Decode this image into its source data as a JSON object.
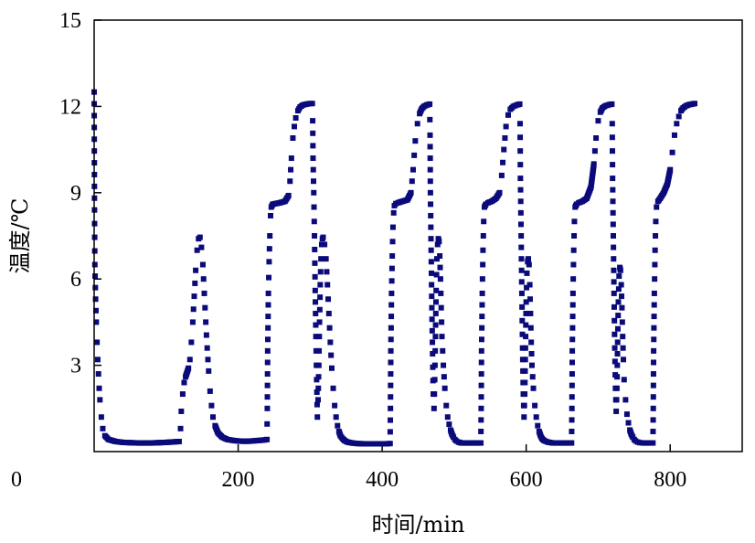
{
  "chart_data": {
    "type": "scatter",
    "title": "",
    "xlabel": "时间/min",
    "ylabel": "温度/℃",
    "xlim": [
      0,
      900
    ],
    "ylim": [
      0,
      15
    ],
    "xticks": [
      0,
      200,
      400,
      600,
      800
    ],
    "yticks": [
      3,
      6,
      9,
      12,
      15
    ],
    "x_tick_labels": [
      "0",
      "200",
      "400",
      "600",
      "800"
    ],
    "y_tick_labels": [
      "3",
      "6",
      "9",
      "12",
      "15"
    ],
    "grid": false,
    "legend": "none",
    "marker": "square",
    "color": "#0a0a7a",
    "series": [
      {
        "x": [
          0,
          0.5,
          1,
          2,
          3,
          4,
          5,
          6,
          7,
          8,
          10,
          12,
          15,
          20,
          30,
          40,
          60,
          80,
          100,
          118,
          120,
          121,
          123,
          125,
          127,
          129,
          131,
          133,
          135,
          137,
          139,
          141,
          143,
          145,
          147,
          149,
          151,
          153,
          155,
          157,
          159,
          161,
          163,
          165,
          168,
          172,
          178,
          185,
          195,
          205,
          215,
          225,
          235,
          240,
          240.5,
          241,
          242,
          243,
          244,
          245,
          246,
          248,
          252,
          258,
          265,
          270,
          272,
          274,
          276,
          278,
          280,
          283,
          286,
          290,
          295,
          300,
          303,
          303.5,
          304,
          305,
          306,
          307,
          308,
          309,
          310,
          311,
          312,
          313,
          314,
          315,
          316,
          317,
          318,
          320,
          322,
          324,
          326,
          328,
          330,
          332,
          334,
          336,
          338,
          340,
          342,
          345,
          348,
          352,
          358,
          365,
          375,
          385,
          395,
          405,
          411,
          411.5,
          412,
          413,
          414,
          415,
          416,
          417,
          419,
          422,
          428,
          435,
          440,
          443,
          446,
          449,
          452,
          455,
          458,
          462,
          466,
          466.5,
          467,
          468,
          469,
          470,
          471,
          472,
          473,
          474,
          475,
          476,
          477,
          478,
          479,
          480,
          481,
          482,
          483,
          485,
          487,
          489,
          491,
          493,
          495,
          497,
          499,
          501,
          503,
          506,
          510,
          515,
          522,
          530,
          537,
          537.5,
          538,
          539,
          540,
          541,
          542,
          544,
          547,
          552,
          558,
          563,
          566,
          569,
          572,
          575,
          578,
          582,
          587,
          591,
          591.5,
          592,
          593,
          594,
          595,
          596,
          597,
          598,
          599,
          600,
          601,
          602,
          603,
          604,
          605,
          606,
          607,
          608,
          610,
          612,
          614,
          616,
          618,
          620,
          622,
          625,
          630,
          637,
          645,
          655,
          663,
          663.5,
          664,
          665,
          666,
          667,
          668,
          670,
          673,
          678,
          684,
          690,
          694,
          697,
          700,
          703,
          706,
          710,
          715,
          719,
          719.5,
          720,
          721,
          722,
          723,
          724,
          725,
          726,
          727,
          728,
          729,
          730,
          731,
          732,
          733,
          734,
          735,
          736,
          738,
          740,
          742,
          744,
          746,
          748,
          750,
          752,
          755,
          758,
          762,
          767,
          772,
          776,
          776.5,
          777,
          778,
          779,
          780,
          781,
          783,
          786,
          791,
          796,
          800,
          803,
          806,
          809,
          812,
          815,
          818,
          822,
          826,
          830,
          834
        ],
        "y": [
          12.5,
          8.4,
          6.5,
          5.3,
          4.5,
          3.8,
          3.2,
          2.7,
          2.2,
          1.8,
          1.2,
          0.8,
          0.55,
          0.42,
          0.35,
          0.32,
          0.3,
          0.3,
          0.32,
          0.35,
          0.8,
          1.4,
          2.0,
          2.4,
          2.6,
          2.75,
          2.9,
          3.2,
          3.8,
          4.5,
          5.4,
          6.3,
          7.0,
          7.4,
          7.45,
          7.1,
          6.5,
          5.5,
          4.5,
          3.6,
          2.8,
          2.1,
          1.6,
          1.2,
          0.9,
          0.65,
          0.5,
          0.42,
          0.38,
          0.36,
          0.36,
          0.38,
          0.4,
          0.42,
          1.5,
          3.5,
          5.5,
          6.6,
          7.5,
          8.2,
          8.5,
          8.6,
          8.62,
          8.65,
          8.7,
          8.9,
          9.4,
          10.2,
          10.9,
          11.3,
          11.6,
          11.85,
          11.98,
          12.05,
          12.08,
          12.1,
          12.1,
          11.5,
          10.2,
          9.0,
          7.5,
          5.6,
          4.0,
          2.5,
          1.2,
          1.8,
          3.0,
          4.5,
          5.8,
          6.7,
          7.2,
          7.4,
          7.45,
          7.2,
          6.7,
          5.8,
          4.8,
          3.8,
          2.9,
          2.2,
          1.6,
          1.2,
          0.9,
          0.7,
          0.55,
          0.45,
          0.38,
          0.33,
          0.3,
          0.28,
          0.27,
          0.27,
          0.27,
          0.27,
          0.28,
          1.5,
          3.5,
          5.5,
          6.8,
          7.8,
          8.3,
          8.55,
          8.62,
          8.65,
          8.7,
          8.75,
          9.0,
          9.8,
          10.8,
          11.4,
          11.75,
          11.92,
          12.0,
          12.05,
          12.08,
          11.0,
          9.0,
          7.0,
          5.0,
          3.4,
          2.0,
          1.5,
          2.5,
          4.0,
          5.6,
          6.7,
          7.2,
          7.4,
          7.3,
          6.8,
          6.0,
          5.0,
          4.0,
          3.0,
          2.2,
          1.6,
          1.2,
          0.95,
          0.75,
          0.6,
          0.5,
          0.42,
          0.37,
          0.33,
          0.3,
          0.3,
          0.3,
          0.3,
          0.3,
          1.5,
          3.5,
          5.5,
          7.0,
          8.0,
          8.5,
          8.6,
          8.65,
          8.7,
          8.8,
          9.0,
          9.6,
          10.5,
          11.3,
          11.7,
          11.9,
          12.0,
          12.05,
          12.08,
          11.4,
          9.5,
          7.5,
          5.5,
          3.6,
          2.0,
          1.2,
          2.0,
          3.6,
          5.2,
          6.2,
          6.6,
          6.7,
          6.5,
          5.8,
          4.8,
          3.8,
          3.0,
          2.2,
          1.6,
          1.2,
          0.9,
          0.7,
          0.55,
          0.45,
          0.38,
          0.33,
          0.3,
          0.3,
          0.3,
          0.3,
          1.5,
          3.5,
          5.5,
          7.0,
          8.0,
          8.5,
          8.6,
          8.65,
          8.7,
          8.8,
          9.2,
          10.0,
          10.9,
          11.5,
          11.8,
          11.95,
          12.02,
          12.06,
          12.08,
          11.4,
          9.5,
          7.5,
          5.5,
          3.6,
          2.2,
          1.4,
          2.2,
          3.8,
          5.2,
          6.1,
          6.4,
          6.3,
          5.8,
          5.0,
          4.0,
          3.2,
          2.5,
          1.8,
          1.3,
          1.0,
          0.75,
          0.6,
          0.5,
          0.42,
          0.37,
          0.33,
          0.31,
          0.3,
          0.3,
          0.3,
          0.3,
          1.5,
          3.5,
          5.5,
          7.0,
          8.0,
          8.5,
          8.7,
          8.8,
          9.0,
          9.3,
          9.8,
          10.4,
          11.0,
          11.4,
          11.65,
          11.85,
          11.95,
          12.02,
          12.06,
          12.08,
          12.1
        ]
      }
    ]
  }
}
